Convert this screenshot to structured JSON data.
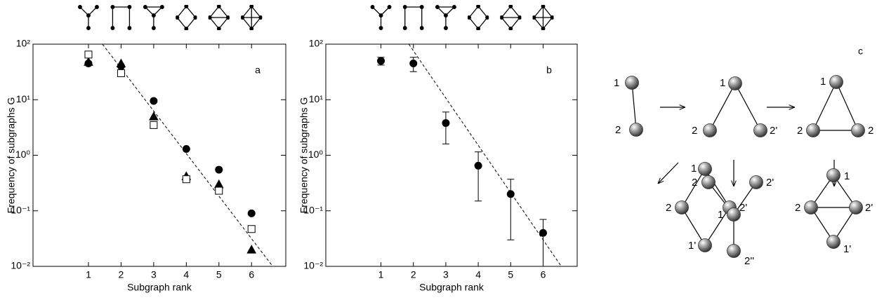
{
  "chart_data": [
    {
      "type": "scatter",
      "panel_label": "a",
      "ylabel": "Frequency of subgraphs G",
      "xlabel": "Subgraph rank",
      "x": [
        1,
        2,
        3,
        4,
        5,
        6
      ],
      "series": [
        {
          "marker": "circle",
          "color": "#000000",
          "filled": true,
          "values": [
            45,
            40,
            9.5,
            1.3,
            0.55,
            0.09
          ]
        },
        {
          "marker": "triangle",
          "color": "#000000",
          "filled": true,
          "values": [
            48,
            45,
            5,
            0.42,
            0.3,
            0.02
          ]
        },
        {
          "marker": "square",
          "color": "#000000",
          "filled": false,
          "values": [
            65,
            30,
            3.5,
            0.37,
            0.23,
            0.047
          ]
        }
      ],
      "fit": {
        "x": [
          1.43,
          6.65
        ],
        "values": [
          100,
          0.01
        ]
      },
      "xlim": [
        -0.7,
        7.05
      ],
      "ylim": [
        0.01,
        100
      ],
      "yscale": "log",
      "xticks": [
        1,
        2,
        3,
        4,
        5,
        6
      ],
      "yticks": [
        {
          "value": 0.01,
          "label": "10⁻²"
        },
        {
          "value": 0.1,
          "label": "10⁻¹"
        },
        {
          "value": 1,
          "label": "10⁰"
        },
        {
          "value": 10,
          "label": "10¹"
        },
        {
          "value": 100,
          "label": "10²"
        }
      ]
    },
    {
      "type": "errorbar",
      "panel_label": "b",
      "ylabel": "Frequency of subgraphs G",
      "xlabel": "Subgraph rank",
      "x": [
        1,
        2,
        3,
        4,
        5,
        6
      ],
      "series": [
        {
          "marker": "circle",
          "color": "#000000",
          "filled": true,
          "values": [
            50,
            45,
            3.8,
            0.65,
            0.2,
            0.04
          ],
          "errors": [
            8,
            13,
            2.2,
            0.5,
            0.17,
            0.03
          ]
        }
      ],
      "fit": {
        "x": [
          1.86,
          6.56
        ],
        "values": [
          100,
          0.01
        ]
      },
      "xlim": [
        -0.7,
        7.05
      ],
      "ylim": [
        0.01,
        100
      ],
      "yscale": "log",
      "xticks": [
        1,
        2,
        3,
        4,
        5,
        6
      ],
      "yticks": [
        {
          "value": 0.01,
          "label": "10⁻²"
        },
        {
          "value": 0.1,
          "label": "10⁻¹"
        },
        {
          "value": 1,
          "label": "10⁰"
        },
        {
          "value": 10,
          "label": "10¹"
        },
        {
          "value": 100,
          "label": "10²"
        }
      ]
    }
  ],
  "diagram": {
    "panel_label": "c",
    "graphs": [
      {
        "nodes": [
          "1",
          "2"
        ]
      },
      {
        "nodes": [
          "1",
          "2",
          "2'"
        ]
      },
      {
        "nodes": [
          "1",
          "2",
          "2"
        ]
      },
      {
        "nodes": [
          "1",
          "2",
          "2'",
          "1'"
        ]
      },
      {
        "nodes": [
          "2",
          "2'",
          "1",
          "2''"
        ]
      },
      {
        "nodes": [
          "1",
          "2",
          "2'",
          "1'"
        ]
      }
    ]
  }
}
